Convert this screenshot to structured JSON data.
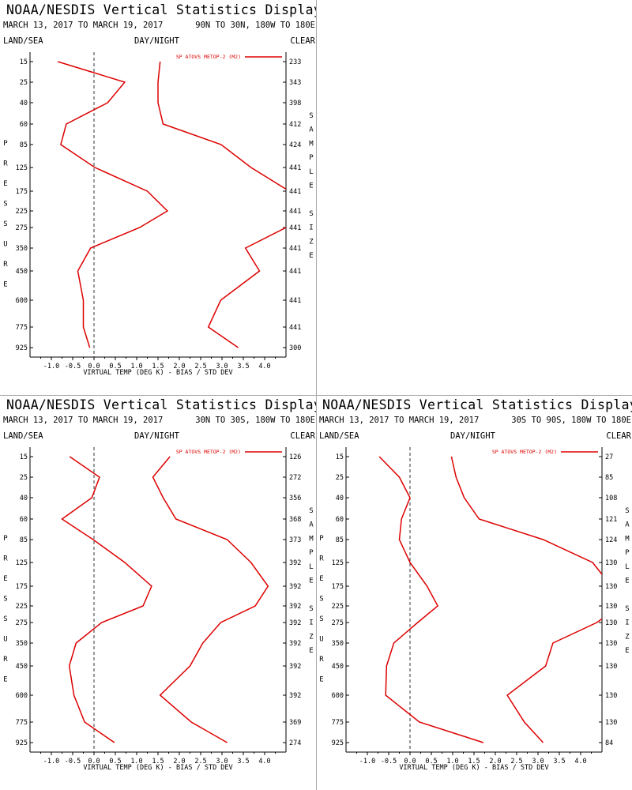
{
  "panels": [
    {
      "title": "NOAA/NESDIS Vertical Statistics Display",
      "date_range": "MARCH 13, 2017 TO MARCH 19, 2017",
      "region": "90N TO 30N, 180W TO 180E",
      "land_sea": "LAND/SEA",
      "day_night": "DAY/NIGHT",
      "clear": "CLEAR",
      "legend": "SP ATOVS METOP-2 (M2)",
      "y_axis_letters": [
        "P",
        "R",
        "E",
        "S",
        "S",
        "U",
        "R",
        "E"
      ],
      "right_axis_letters": [
        "S",
        "A",
        "M",
        "P",
        "L",
        "E",
        "",
        "S",
        "I",
        "Z",
        "E"
      ],
      "xlabel": "VIRTUAL TEMP (DEG K) - BIAS / STD DEV"
    },
    {
      "title": "NOAA/NESDIS Vertical Statistics Display",
      "date_range": "MARCH 13, 2017 TO MARCH 19, 2017",
      "region": "30N TO 30S, 180W TO 180E",
      "land_sea": "LAND/SEA",
      "day_night": "DAY/NIGHT",
      "clear": "CLEAR",
      "legend": "SP ATOVS METOP-2 (M2)",
      "y_axis_letters": [
        "P",
        "R",
        "E",
        "S",
        "S",
        "U",
        "R",
        "E"
      ],
      "right_axis_letters": [
        "S",
        "A",
        "M",
        "P",
        "L",
        "E",
        "",
        "S",
        "I",
        "Z",
        "E"
      ],
      "xlabel": "VIRTUAL TEMP (DEG K) - BIAS / STD DEV"
    },
    {
      "title": "NOAA/NESDIS Vertical Statistics Display",
      "date_range": "MARCH 13, 2017 TO MARCH 19, 2017",
      "region": "30S TO 90S, 180W TO 180E",
      "land_sea": "LAND/SEA",
      "day_night": "DAY/NIGHT",
      "clear": "CLEAR",
      "legend": "SP ATOVS METOP-2 (M2)",
      "y_axis_letters": [
        "P",
        "R",
        "E",
        "S",
        "S",
        "U",
        "R",
        "E"
      ],
      "right_axis_letters": [
        "S",
        "A",
        "M",
        "P",
        "L",
        "E",
        "",
        "S",
        "I",
        "Z",
        "E"
      ],
      "xlabel": "VIRTUAL TEMP (DEG K) - BIAS / STD DEV"
    }
  ],
  "chart_data": [
    {
      "type": "line",
      "pressure_levels": [
        15,
        25,
        40,
        60,
        85,
        125,
        175,
        225,
        275,
        350,
        450,
        600,
        775,
        925
      ],
      "x_ticks": [
        "-1.0",
        "-0.5",
        "0.0",
        "0.5",
        "1.0",
        "1.5",
        "2.0",
        "2.5",
        "3.0",
        "3.5",
        "4.0"
      ],
      "xlim": [
        -1.5,
        4.5
      ],
      "line_color": "#dd0000",
      "series": [
        {
          "name": "bias",
          "values": [
            -0.85,
            0.72,
            0.32,
            -0.65,
            -0.78,
            0.02,
            1.25,
            1.72,
            1.07,
            -0.08,
            -0.38,
            -0.25,
            -0.25,
            -0.1
          ]
        },
        {
          "name": "std_dev",
          "values": [
            1.55,
            1.5,
            1.5,
            1.62,
            2.98,
            3.68,
            4.58,
            4.98,
            4.5,
            3.55,
            3.88,
            2.97,
            2.68,
            3.38
          ]
        }
      ],
      "sample_size": [
        "233",
        "343",
        "398",
        "412",
        "424",
        "441",
        "441",
        "441",
        "441",
        "441",
        "441",
        "441",
        "441",
        "300"
      ]
    },
    {
      "type": "line",
      "pressure_levels": [
        15,
        25,
        40,
        60,
        85,
        125,
        175,
        225,
        275,
        350,
        450,
        600,
        775,
        925
      ],
      "x_ticks": [
        "-1.0",
        "-0.5",
        "0.0",
        "0.5",
        "1.0",
        "1.5",
        "2.0",
        "2.5",
        "3.0",
        "3.5",
        "4.0"
      ],
      "xlim": [
        -1.5,
        4.5
      ],
      "line_color": "#dd0000",
      "series": [
        {
          "name": "bias",
          "values": [
            -0.57,
            0.13,
            -0.05,
            -0.75,
            -0.02,
            0.72,
            1.35,
            1.15,
            0.18,
            -0.42,
            -0.58,
            -0.47,
            -0.22,
            0.48
          ]
        },
        {
          "name": "std_dev",
          "values": [
            1.78,
            1.38,
            1.62,
            1.92,
            3.12,
            3.68,
            4.08,
            3.78,
            2.97,
            2.55,
            2.25,
            1.55,
            2.28,
            3.12
          ]
        }
      ],
      "sample_size": [
        "126",
        "272",
        "356",
        "368",
        "373",
        "392",
        "392",
        "392",
        "392",
        "392",
        "392",
        "392",
        "369",
        "274"
      ]
    },
    {
      "type": "line",
      "pressure_levels": [
        15,
        25,
        40,
        60,
        85,
        125,
        175,
        225,
        275,
        350,
        450,
        600,
        775,
        925
      ],
      "x_ticks": [
        "-1.0",
        "-0.5",
        "0.0",
        "0.5",
        "1.0",
        "1.5",
        "2.0",
        "2.5",
        "3.0",
        "3.5",
        "4.0"
      ],
      "xlim": [
        -1.5,
        4.5
      ],
      "line_color": "#dd0000",
      "series": [
        {
          "name": "bias",
          "values": [
            -0.72,
            -0.25,
            0.0,
            -0.2,
            -0.25,
            0.0,
            0.4,
            0.65,
            0.18,
            -0.38,
            -0.55,
            -0.57,
            0.22,
            1.72
          ]
        },
        {
          "name": "std_dev",
          "values": [
            0.97,
            1.08,
            1.27,
            1.62,
            3.12,
            4.28,
            4.72,
            4.92,
            4.38,
            3.35,
            3.18,
            2.28,
            2.68,
            3.12
          ]
        }
      ],
      "sample_size": [
        "27",
        "85",
        "108",
        "121",
        "124",
        "130",
        "130",
        "130",
        "130",
        "130",
        "130",
        "130",
        "130",
        "84"
      ]
    }
  ]
}
